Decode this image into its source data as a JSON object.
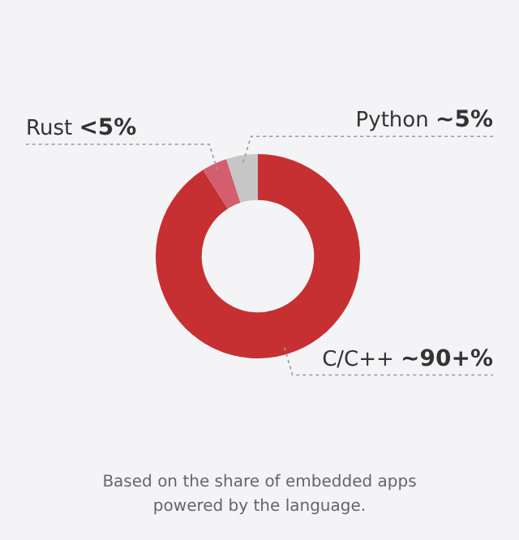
{
  "chart_data": {
    "type": "donut",
    "categories": [
      "C/C++",
      "Rust",
      "Python"
    ],
    "values": [
      91,
      4,
      5
    ],
    "colors": [
      "#c63033",
      "#d45d6e",
      "#c6c6c6"
    ],
    "value_labels": [
      "~90+%",
      "<5%",
      "~5%"
    ],
    "annotations": [
      "Based on the share of embedded apps powered by the language."
    ]
  }
}
